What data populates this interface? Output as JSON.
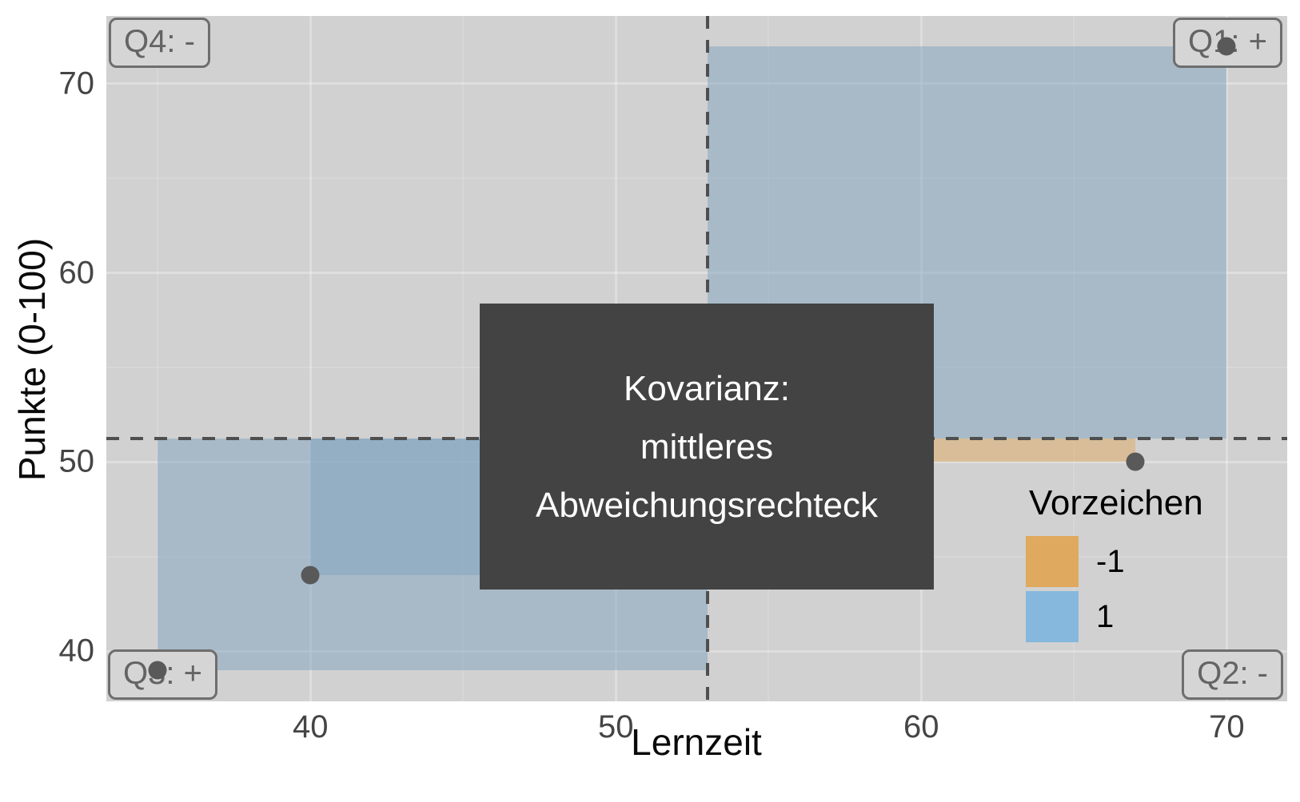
{
  "chart_data": {
    "type": "scatter",
    "description": "Covariance illustrated as mean-deviation rectangles between each data point and the means of x and y",
    "xlabel": "Lernzeit",
    "ylabel": "Punkte (0-100)",
    "points": [
      {
        "x": 35,
        "y": 39
      },
      {
        "x": 40,
        "y": 44
      },
      {
        "x": 67,
        "y": 50
      },
      {
        "x": 70,
        "y": 72
      }
    ],
    "mean_x": 53,
    "mean_y": 51.25,
    "xlim": [
      33.32,
      71.98
    ],
    "ylim": [
      37.34,
      73.59
    ],
    "x_major_ticks": [
      40,
      50,
      60,
      70
    ],
    "x_minor_ticks": [
      35,
      45,
      55,
      65
    ],
    "y_major_ticks": [
      40,
      50,
      60,
      70
    ],
    "y_minor_ticks": [
      45,
      55,
      65
    ],
    "grid": true,
    "annotation": {
      "lines": [
        "Kovarianz:",
        "mittleres",
        "Abweichungsrechteck"
      ],
      "bg_color": "#434343",
      "text_color": "#ffffff"
    },
    "quadrant_labels": [
      {
        "label": "Q4: -",
        "corner": "top-left"
      },
      {
        "label": "Q1: +",
        "corner": "top-right"
      },
      {
        "label": "Q3: +",
        "corner": "bottom-left"
      },
      {
        "label": "Q2: -",
        "corner": "bottom-right"
      }
    ],
    "legend": {
      "title": "Vorzeichen",
      "position": "inside-right",
      "items": [
        {
          "label": "-1",
          "color": "#dfa95f"
        },
        {
          "label": "1",
          "color": "#85b8dc"
        }
      ]
    },
    "colors": {
      "panel_bg": "#d1d1d1",
      "rect_positive_fill": "rgba(127,163,191,0.5)",
      "rect_negative_fill": "rgba(223,169,95,0.5)",
      "mean_line": "#4f4f4f",
      "point": "#595959",
      "grid_major": "rgba(255,255,255,0.28)",
      "grid_minor": "rgba(255,255,255,0.14)",
      "tick_text": "#454545",
      "quadrant_text": "#646464",
      "quadrant_border": "#6e6e6e"
    }
  }
}
